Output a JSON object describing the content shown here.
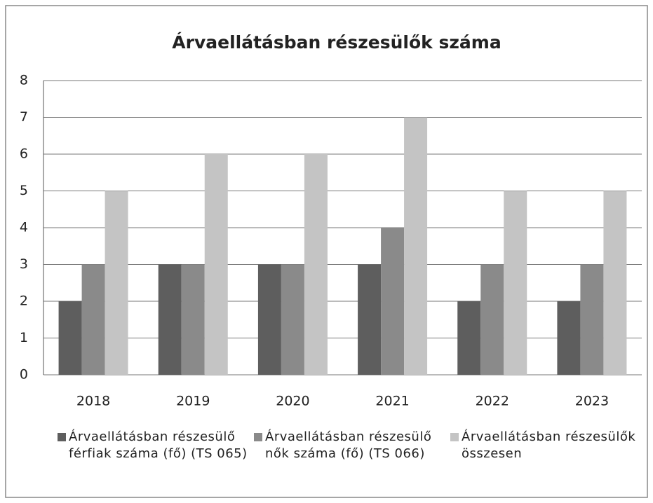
{
  "chart_data": {
    "type": "bar",
    "title": "Árvaellátásban részesülők száma",
    "categories": [
      "2018",
      "2019",
      "2020",
      "2021",
      "2022",
      "2023"
    ],
    "series": [
      {
        "name": "Árvaellátásban részesülő férfiak száma (fő) (TS 065)",
        "color": "#5e5e5e",
        "values": [
          2,
          3,
          3,
          3,
          2,
          2
        ]
      },
      {
        "name": "Árvaellátásban részesülő nők száma (fő) (TS 066)",
        "color": "#8a8a8a",
        "values": [
          3,
          3,
          3,
          4,
          3,
          3
        ]
      },
      {
        "name": "Árvaellátásban részesülők összesen",
        "color": "#c4c4c4",
        "values": [
          5,
          6,
          6,
          7,
          5,
          5
        ]
      }
    ],
    "ylim": [
      0,
      8
    ],
    "yticks": [
      0,
      1,
      2,
      3,
      4,
      5,
      6,
      7,
      8
    ],
    "grid": true,
    "legend": "bottom"
  }
}
